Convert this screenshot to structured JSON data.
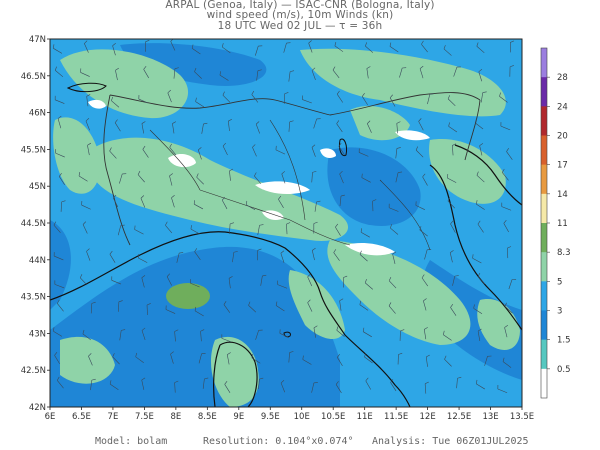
{
  "header": {
    "line1": "ARPAL (Genoa, Italy)  —  ISAC-CNR (Bologna, Italy)",
    "line2": "wind speed (m/s), 10m Winds (kn)",
    "line3": "18 UTC Wed 02 JUL  —  τ = 36h"
  },
  "map": {
    "lat_ticks": [
      "47N",
      "46.5N",
      "46N",
      "45.5N",
      "45N",
      "44.5N",
      "44N",
      "43.5N",
      "43N",
      "42.5N",
      "42N"
    ],
    "lon_ticks": [
      "6E",
      "6.5E",
      "7E",
      "7.5E",
      "8E",
      "8.5E",
      "9E",
      "9.5E",
      "10E",
      "10.5E",
      "11E",
      "11.5E",
      "12E",
      "12.5E",
      "13E",
      "13.5E"
    ],
    "colors": {
      "sea_low": "#1f86d6",
      "mid_blue": "#2ea6e6",
      "light_green": "#8fd3a8",
      "olive_green": "#6fae5c",
      "white": "#ffffff",
      "coast": "#111111",
      "border": "#333333"
    }
  },
  "colorbar": {
    "labels": [
      "28",
      "24",
      "20",
      "17",
      "14",
      "11",
      "8.3",
      "5",
      "3",
      "1.5",
      "0.5"
    ],
    "colors": [
      "#9b7ee0",
      "#6a2aa8",
      "#b0282c",
      "#d8602c",
      "#e89a40",
      "#f5e9a8",
      "#6fae5c",
      "#8fd3a8",
      "#2ea6e6",
      "#1f86d6",
      "#56c8c0",
      "#ffffff"
    ]
  },
  "footer": {
    "model": "Model: bolam",
    "resolution": "Resolution: 0.104°x0.074°",
    "analysis": "Analysis: Tue 06Z01JUL2025"
  }
}
